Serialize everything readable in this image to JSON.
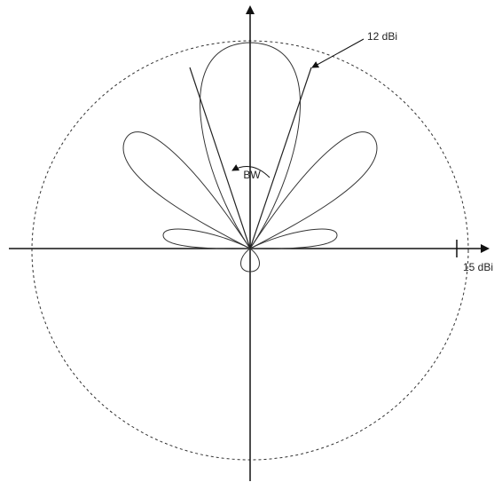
{
  "labels": {
    "lobe_gain": "12 dBi",
    "beamwidth": "BW",
    "circle_gain": "15 dBi"
  }
}
